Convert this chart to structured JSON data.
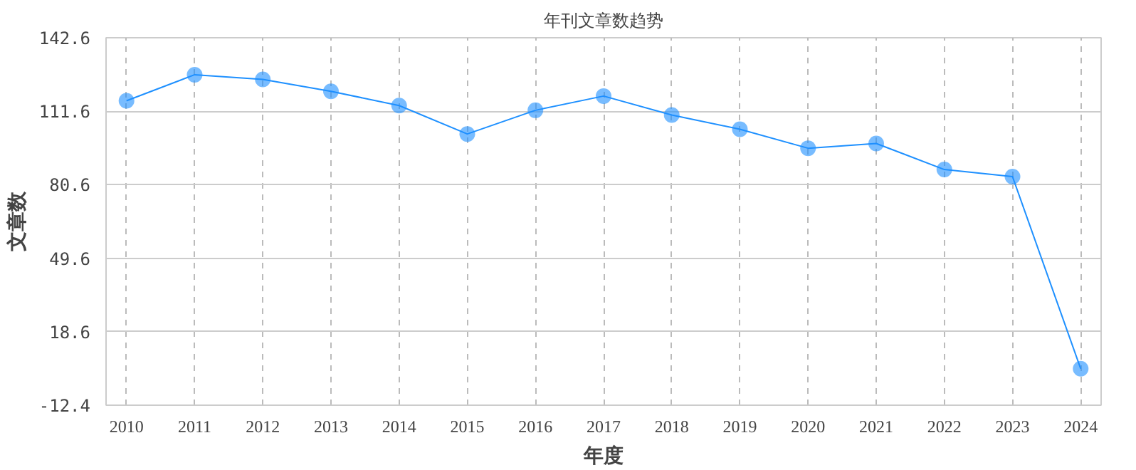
{
  "chart_data": {
    "type": "line",
    "title": "年刊文章数趋势",
    "xlabel": "年度",
    "ylabel": "文章数",
    "categories": [
      "2010",
      "2011",
      "2012",
      "2013",
      "2014",
      "2015",
      "2016",
      "2017",
      "2018",
      "2019",
      "2020",
      "2021",
      "2022",
      "2023",
      "2024"
    ],
    "series": [
      {
        "color": "#1e90ff",
        "values": [
          116,
          127,
          125,
          120,
          114,
          102,
          112,
          118,
          110,
          104,
          96,
          98,
          87,
          84,
          3
        ]
      }
    ],
    "ylim": [
      -12.4,
      142.6
    ],
    "yticks": [
      -12.4,
      18.6,
      49.6,
      80.6,
      111.6,
      142.6
    ],
    "grid": true,
    "marker": "circle",
    "line_style": "solid"
  }
}
